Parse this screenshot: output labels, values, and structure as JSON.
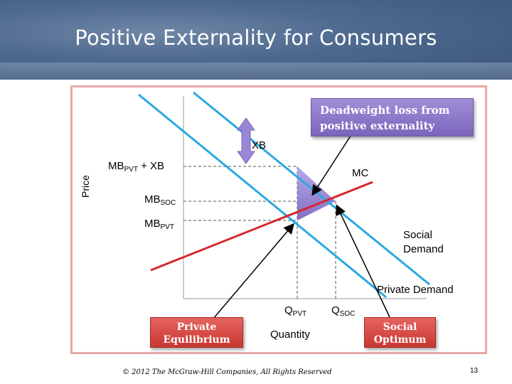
{
  "slide": {
    "title": "Positive Externality for Consumers",
    "footer": "© 2012 The McGraw-Hill Companies, All Rights Reserved",
    "page_number": "13"
  },
  "diagram": {
    "y_axis_label": "Price",
    "x_axis_label": "Quantity",
    "labels": {
      "mbpvt_xb": {
        "main": "MB",
        "sub": "PVT",
        "suffix": " + XB"
      },
      "mbsoc": {
        "main": "MB",
        "sub": "SOC"
      },
      "mbpvt": {
        "main": "MB",
        "sub": "PVT"
      },
      "xb": "XB",
      "mc": "MC",
      "social_demand_line1": "Social",
      "social_demand_line2": "Demand",
      "private_demand": "Private Demand",
      "qpvt": {
        "main": "Q",
        "sub": "PVT"
      },
      "qsoc": {
        "main": "Q",
        "sub": "SOC"
      }
    },
    "callouts": {
      "deadweight_line1": "Deadweight loss from",
      "deadweight_line2": "positive externality",
      "private_eq_line1": "Private",
      "private_eq_line2": "Equilibrium",
      "social_opt_line1": "Social",
      "social_opt_line2": "Optimum"
    },
    "colors": {
      "demand_lines": "#29a9e1",
      "mc_line": "#d6262b",
      "deadweight_triangle": "#9a86d6",
      "xb_arrow": "#9a86d6",
      "callout_purple": "#8d79c9",
      "callout_red": "#d9413d",
      "banner": "#4e6a8f"
    }
  }
}
